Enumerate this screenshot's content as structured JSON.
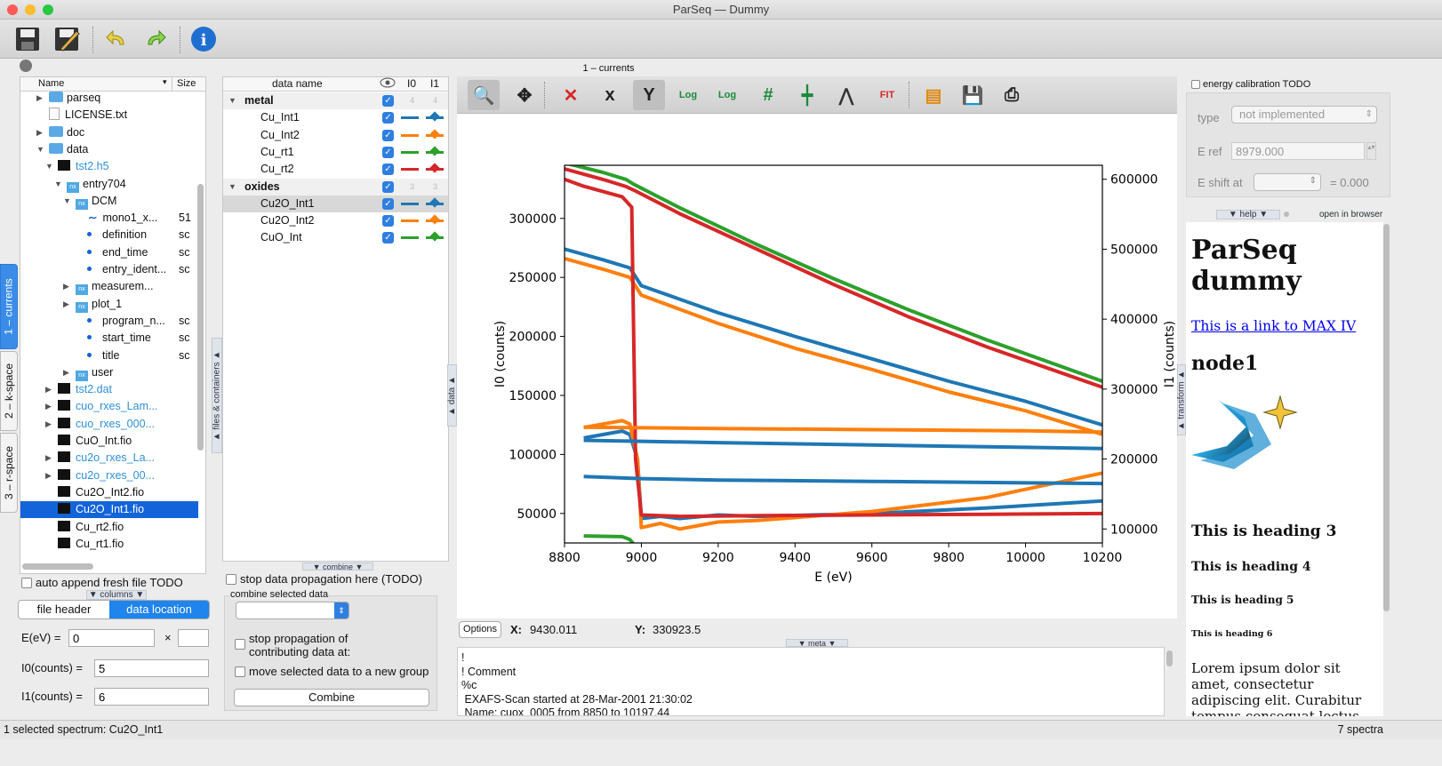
{
  "window": {
    "title": "ParSeq  —  Dummy"
  },
  "toolbar": {
    "icons": [
      "save-icon",
      "save-as-icon",
      "undo-icon",
      "redo-icon",
      "info-icon"
    ]
  },
  "dock": {
    "title": "1 – currents"
  },
  "vtabs": [
    "1 – currents",
    "2 – k-space",
    "3 – r-space"
  ],
  "tree": {
    "col_name": "Name",
    "col_size": "Size",
    "rows": [
      {
        "label": "parseq",
        "size": ""
      },
      {
        "label": "LICENSE.txt",
        "size": ""
      },
      {
        "label": "doc",
        "size": ""
      },
      {
        "label": "data",
        "size": ""
      },
      {
        "label": "tst2.h5",
        "size": ""
      },
      {
        "label": "entry704",
        "size": ""
      },
      {
        "label": "DCM",
        "size": ""
      },
      {
        "label": "mono1_x...",
        "size": "51"
      },
      {
        "label": "definition",
        "size": "sc"
      },
      {
        "label": "end_time",
        "size": "sc"
      },
      {
        "label": "entry_ident...",
        "size": "sc"
      },
      {
        "label": "measurem...",
        "size": ""
      },
      {
        "label": "plot_1",
        "size": ""
      },
      {
        "label": "program_n...",
        "size": "sc"
      },
      {
        "label": "start_time",
        "size": "sc"
      },
      {
        "label": "title",
        "size": "sc"
      },
      {
        "label": "user",
        "size": ""
      },
      {
        "label": "tst2.dat",
        "size": ""
      },
      {
        "label": "cuo_rxes_Lam...",
        "size": ""
      },
      {
        "label": "cuo_rxes_000...",
        "size": ""
      },
      {
        "label": "CuO_Int.fio",
        "size": ""
      },
      {
        "label": "cu2o_rxes_La...",
        "size": ""
      },
      {
        "label": "cu2o_rxes_00...",
        "size": ""
      },
      {
        "label": "Cu2O_Int2.fio",
        "size": ""
      },
      {
        "label": "Cu2O_Int1.fio",
        "size": ""
      },
      {
        "label": "Cu_rt2.fio",
        "size": ""
      },
      {
        "label": "Cu_rt1.fio",
        "size": ""
      }
    ]
  },
  "left": {
    "auto_append": "auto append fresh file TODO",
    "columns": "▼ columns ▼",
    "tab_header": "file header",
    "tab_location": "data location",
    "e_label": "E(eV) =",
    "e_value": "0",
    "times": "×",
    "i0_label": "I0(counts) =",
    "i0_value": "5",
    "i1_label": "I1(counts) =",
    "i1_value": "6",
    "files_tab": "▲ files & containers ▲"
  },
  "datatable": {
    "col_name": "data name",
    "col_i0": "I0",
    "col_i1": "I1",
    "groups": [
      {
        "name": "metal",
        "n0": "4",
        "n1": "4",
        "items": [
          {
            "name": "Cu_Int1",
            "color": "#1f77b4"
          },
          {
            "name": "Cu_Int2",
            "color": "#ff7f0e"
          },
          {
            "name": "Cu_rt1",
            "color": "#2ca02c"
          },
          {
            "name": "Cu_rt2",
            "color": "#d62728"
          }
        ]
      },
      {
        "name": "oxides",
        "n0": "3",
        "n1": "3",
        "items": [
          {
            "name": "Cu2O_Int1",
            "color": "#1f77b4"
          },
          {
            "name": "Cu2O_Int2",
            "color": "#ff7f0e"
          },
          {
            "name": "CuO_Int",
            "color": "#2ca02c"
          }
        ]
      }
    ]
  },
  "combine": {
    "tab": "▼ combine ▼",
    "stop_prop": "stop data propagation here (TODO)",
    "combine_selected": "combine selected data",
    "stop_contrib": "stop propagation of contributing data at:",
    "move_new": "move selected data to a new group",
    "button": "Combine",
    "data_tab": "▲ data ▲"
  },
  "plot": {
    "tools": [
      "zoom-icon",
      "pan-icon",
      "clear-icon",
      "x-axis-icon",
      "y-axis-icon",
      "log-x-icon",
      "log-y-icon",
      "grid-icon",
      "curve-style-icon",
      "peak-icon",
      "fit-icon",
      "legend-icon",
      "save-plot-icon",
      "print-icon"
    ],
    "options": "Options",
    "x_label": "X:",
    "x_value": "9430.011",
    "y_label": "Y:",
    "y_value": "330923.5",
    "meta_tab": "▼ meta ▼",
    "transform_tab": "▲ transform ▲"
  },
  "chart_data": {
    "type": "line",
    "xlabel": "E (eV)",
    "ylabel": "I0 (counts)",
    "y2label": "I1 (counts)",
    "xlim": [
      8800,
      10200
    ],
    "ylim": [
      25000,
      345000
    ],
    "y2lim": [
      80000,
      620000
    ],
    "xticks": [
      8800,
      9000,
      9200,
      9400,
      9600,
      9800,
      10000,
      10200
    ],
    "yticks": [
      50000,
      100000,
      150000,
      200000,
      250000,
      300000
    ],
    "y2ticks": [
      100000,
      200000,
      300000,
      400000,
      500000,
      600000
    ],
    "series": [
      {
        "axis": "left",
        "color": "#2ca02c",
        "x": [
          8800,
          8900,
          8960,
          8980,
          9100,
          9300,
          9500,
          9700,
          9900,
          10200
        ],
        "y": [
          347000,
          339000,
          333000,
          329000,
          309000,
          278000,
          249000,
          222000,
          197000,
          162000
        ]
      },
      {
        "axis": "left",
        "color": "#d62728",
        "x": [
          8800,
          8900,
          8960,
          8980,
          9100,
          9300,
          9500,
          9700,
          9900,
          10200
        ],
        "y": [
          342000,
          333000,
          327000,
          324000,
          304000,
          274000,
          244000,
          216000,
          191000,
          157000
        ]
      },
      {
        "axis": "left",
        "color": "#1f77b4",
        "x": [
          8800,
          8900,
          8970,
          9000,
          9200,
          9400,
          9600,
          9800,
          10000,
          10200
        ],
        "y": [
          274000,
          265000,
          258000,
          243000,
          220000,
          200000,
          181000,
          162000,
          145000,
          125000
        ]
      },
      {
        "axis": "left",
        "color": "#ff7f0e",
        "x": [
          8800,
          8900,
          8970,
          9000,
          9200,
          9400,
          9600,
          9800,
          10000,
          10200
        ],
        "y": [
          266000,
          257000,
          250000,
          235000,
          211000,
          190000,
          172000,
          153000,
          137000,
          117000
        ]
      },
      {
        "axis": "right",
        "color": "#1f77b4",
        "x": [
          8850,
          8950,
          8970,
          8990,
          9000,
          9050,
          9100,
          9200,
          9300,
          9600,
          9900,
          10200
        ],
        "y": [
          230000,
          240000,
          235000,
          200000,
          115000,
          118000,
          115000,
          120000,
          118000,
          122000,
          130000,
          140000
        ]
      },
      {
        "axis": "right",
        "color": "#ff7f0e",
        "x": [
          8850,
          8950,
          8970,
          8990,
          9000,
          9050,
          9100,
          9200,
          9300,
          9600,
          9900,
          10200
        ],
        "y": [
          245000,
          255000,
          250000,
          200000,
          102000,
          108000,
          100000,
          110000,
          112000,
          125000,
          145000,
          180000
        ]
      },
      {
        "axis": "right",
        "color": "#d62728",
        "x": [
          8800,
          8850,
          8950,
          8975,
          8985,
          9000,
          9100,
          9300,
          9600,
          9900,
          10200
        ],
        "y": [
          600000,
          590000,
          575000,
          560000,
          200000,
          120000,
          118000,
          119000,
          120000,
          121000,
          122000
        ]
      },
      {
        "axis": "right",
        "color": "#2ca02c",
        "x": [
          8850,
          8950,
          8970,
          8985,
          9000,
          9100,
          9300,
          9600,
          9900,
          10000
        ],
        "y": [
          90000,
          89000,
          85000,
          75000,
          72000,
          72500,
          73000,
          73500,
          74000,
          74500
        ]
      },
      {
        "axis": "left",
        "color": "#ff7f0e",
        "x": [
          8850,
          9200,
          9600,
          10000,
          10200
        ],
        "y": [
          123000,
          122000,
          121000,
          120000,
          119000
        ]
      },
      {
        "axis": "left",
        "color": "#1f77b4",
        "x": [
          8850,
          9200,
          9600,
          10000,
          10200
        ],
        "y": [
          112000,
          110000,
          108000,
          106000,
          105000
        ]
      },
      {
        "axis": "right",
        "color": "#1f77b4",
        "x": [
          8850,
          9000,
          9200,
          9600,
          10200
        ],
        "y": [
          175000,
          172000,
          170000,
          168000,
          165000
        ]
      }
    ]
  },
  "meta": {
    "text": "!\n! Comment\n%c\n EXAFS-Scan started at 28-Mar-2001 21:30:02\n Name: cuox_0005 from 8850 to 10197.44"
  },
  "right": {
    "energy_cal": "energy calibration TODO",
    "type_label": "type",
    "type_value": "not implemented",
    "eref_label": "E ref",
    "eref_value": "8979.000",
    "eshift_label": "E shift at",
    "eshift_value": "= 0.000",
    "help_tab": "▼ help ▼",
    "open_browser": "open in browser"
  },
  "help": {
    "h1": "ParSeq dummy",
    "link": "This is a link to MAX IV",
    "h2": "node1",
    "h3": "This is heading 3",
    "h4": "This is heading 4",
    "h5": "This is heading 5",
    "h6": "This is heading 6",
    "para": "Lorem ipsum dolor sit amet, consectetur adipiscing elit. Curabitur tempus consequat lectus, euismod condimentum"
  },
  "status": {
    "left": "1 selected spectrum: Cu2O_Int1",
    "right": "7 spectra"
  }
}
